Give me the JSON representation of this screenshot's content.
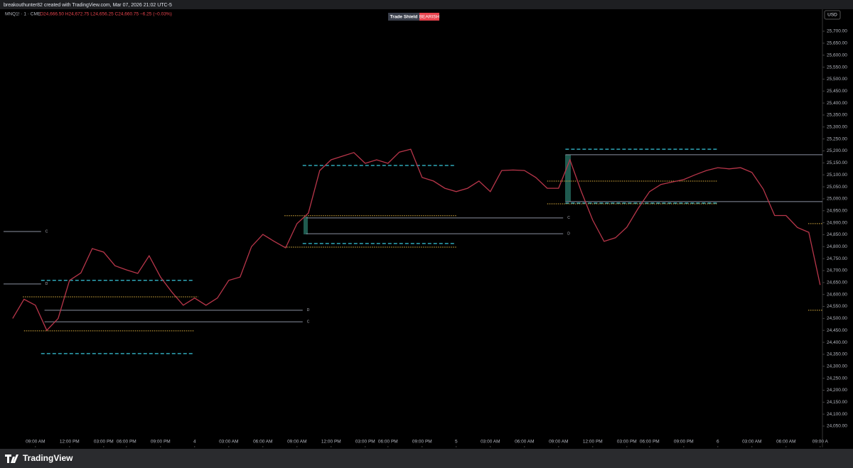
{
  "header": {
    "credit": "breakouthunter82 created with TradingView.com, Mar 07, 2026 21:02 UTC-5",
    "symbol": "MNQ1! · 1 · CME",
    "ohlc": "O24,666.50 H24,672.75 L24,656.25 C24,660.75 −6.25 (−0.03%)",
    "badge_name": "Trade Shield",
    "badge_state": "BEARISH"
  },
  "footer": {
    "brand": "TradingView"
  },
  "chart_data": {
    "type": "line",
    "currency": "USD",
    "grid": false,
    "x": [
      -2,
      -1,
      0,
      1,
      2,
      3,
      4,
      5,
      6,
      7,
      8,
      9,
      10,
      11,
      12,
      13,
      14,
      15,
      16,
      17,
      18,
      19,
      20,
      21,
      22,
      23,
      24,
      25,
      26,
      27,
      28,
      29,
      30,
      31,
      32,
      33,
      34,
      35,
      36,
      37,
      38,
      39,
      40,
      41,
      42,
      43,
      44,
      45,
      46,
      47,
      48,
      49,
      50,
      51,
      52,
      53,
      54,
      55,
      56,
      57,
      58,
      59,
      60,
      61,
      62,
      63,
      64,
      65,
      66,
      67,
      68,
      69
    ],
    "series": [
      {
        "color": "#b8364a",
        "values": [
          24500,
          24580,
          24555,
          24450,
          24500,
          24659,
          24690,
          24792,
          24777,
          24720,
          24703,
          24688,
          24762,
          24673,
          24610,
          24555,
          24585,
          24555,
          24585,
          24659,
          24673,
          24800,
          24851,
          24822,
          24795,
          24896,
          24940,
          25118,
          25163,
          25178,
          25193,
          25148,
          25163,
          25148,
          25195,
          25207,
          25089,
          25074,
          25044,
          25030,
          25044,
          25074,
          25030,
          25118,
          25120,
          25118,
          25089,
          25044,
          25044,
          25163,
          25030,
          24911,
          24822,
          24837,
          24881,
          24960,
          25030,
          25060,
          25070,
          25080,
          25100,
          25118,
          25130,
          25125,
          25130,
          25110,
          25040,
          24930,
          24930,
          24880,
          24860,
          24640
        ]
      }
    ],
    "xlim": [
      -2.8,
      69.2
    ],
    "xticks": [
      {
        "value": 0,
        "label": "09:00 AM"
      },
      {
        "value": 3,
        "label": "12:00 PM"
      },
      {
        "value": 6,
        "label": "03:00 PM"
      },
      {
        "value": 8,
        "label": "06:00 PM"
      },
      {
        "value": 11,
        "label": "09:00 PM"
      },
      {
        "value": 14,
        "label": "4"
      },
      {
        "value": 17,
        "label": "03:00 AM"
      },
      {
        "value": 20,
        "label": "06:00 AM"
      },
      {
        "value": 23,
        "label": "09:00 AM"
      },
      {
        "value": 26,
        "label": "12:00 PM"
      },
      {
        "value": 29,
        "label": "03:00 PM"
      },
      {
        "value": 31,
        "label": "06:00 PM"
      },
      {
        "value": 34,
        "label": "09:00 PM"
      },
      {
        "value": 37,
        "label": "5"
      },
      {
        "value": 40,
        "label": "03:00 AM"
      },
      {
        "value": 43,
        "label": "06:00 AM"
      },
      {
        "value": 46,
        "label": "09:00 AM"
      },
      {
        "value": 49,
        "label": "12:00 PM"
      },
      {
        "value": 52,
        "label": "03:00 PM"
      },
      {
        "value": 54,
        "label": "06:00 PM"
      },
      {
        "value": 57,
        "label": "09:00 PM"
      },
      {
        "value": 60,
        "label": "6"
      },
      {
        "value": 63,
        "label": "03:00 AM"
      },
      {
        "value": 66,
        "label": "06:00 AM"
      },
      {
        "value": 69,
        "label": "09:00 A"
      }
    ],
    "ylim": [
      23961,
      25792
    ],
    "yticks": [
      {
        "value": 25700,
        "label": "25,700.00"
      },
      {
        "value": 25650,
        "label": "25,650.00"
      },
      {
        "value": 25600,
        "label": "25,600.00"
      },
      {
        "value": 25550,
        "label": "25,550.00"
      },
      {
        "value": 25500,
        "label": "25,500.00"
      },
      {
        "value": 25450,
        "label": "25,450.00"
      },
      {
        "value": 25400,
        "label": "25,400.00"
      },
      {
        "value": 25350,
        "label": "25,350.00"
      },
      {
        "value": 25300,
        "label": "25,300.00"
      },
      {
        "value": 25250,
        "label": "25,250.00"
      },
      {
        "value": 25200,
        "label": "25,200.00"
      },
      {
        "value": 25150,
        "label": "25,150.00"
      },
      {
        "value": 25100,
        "label": "25,100.00"
      },
      {
        "value": 25050,
        "label": "25,050.00"
      },
      {
        "value": 25000,
        "label": "25,000.00"
      },
      {
        "value": 24950,
        "label": "24,950.00"
      },
      {
        "value": 24900,
        "label": "24,900.00"
      },
      {
        "value": 24850,
        "label": "24,850.00"
      },
      {
        "value": 24800,
        "label": "24,800.00"
      },
      {
        "value": 24750,
        "label": "24,750.00"
      },
      {
        "value": 24700,
        "label": "24,700.00"
      },
      {
        "value": 24650,
        "label": "24,650.00"
      },
      {
        "value": 24600,
        "label": "24,600.00"
      },
      {
        "value": 24550,
        "label": "24,550.00"
      },
      {
        "value": 24500,
        "label": "24,500.00"
      },
      {
        "value": 24450,
        "label": "24,450.00"
      },
      {
        "value": 24400,
        "label": "24,400.00"
      },
      {
        "value": 24350,
        "label": "24,350.00"
      },
      {
        "value": 24300,
        "label": "24,300.00"
      },
      {
        "value": 24250,
        "label": "24,250.00"
      },
      {
        "value": 24200,
        "label": "24,200.00"
      },
      {
        "value": 24150,
        "label": "24,150.00"
      },
      {
        "value": 24100,
        "label": "24,100.00"
      },
      {
        "value": 24050,
        "label": "24,050.00"
      }
    ],
    "levels": [
      {
        "price": 24659,
        "from": 0.5,
        "to": 14,
        "style": "dashed",
        "color": "#2fa7b8"
      },
      {
        "price": 24353,
        "from": 0.5,
        "to": 14,
        "style": "dashed",
        "color": "#2fa7b8"
      },
      {
        "price": 24590,
        "from": -1.1,
        "to": 14.3,
        "style": "dotted",
        "color": "#e0b341"
      },
      {
        "price": 24448,
        "from": -1,
        "to": 14,
        "style": "dotted",
        "color": "#e0b341"
      },
      {
        "price": 24534,
        "from": 0.8,
        "to": 23.5,
        "style": "solid",
        "color": "#8a90a0",
        "label": "D"
      },
      {
        "price": 24486,
        "from": 0.8,
        "to": 23.5,
        "style": "solid",
        "color": "#8a90a0",
        "label": "C"
      },
      {
        "price": 24863,
        "from": -2.8,
        "to": 0.5,
        "style": "solid",
        "color": "#8a90a0",
        "label": "C"
      },
      {
        "price": 24644,
        "from": -2.8,
        "to": 0.5,
        "style": "solid",
        "color": "#8a90a0",
        "label": "D"
      },
      {
        "price": 25139,
        "from": 23.5,
        "to": 37,
        "style": "dashed",
        "color": "#2fa7b8"
      },
      {
        "price": 24813,
        "from": 23.5,
        "to": 37,
        "style": "dashed",
        "color": "#2fa7b8"
      },
      {
        "price": 24929,
        "from": 21.9,
        "to": 37,
        "style": "dotted",
        "color": "#e0b341"
      },
      {
        "price": 24798,
        "from": 21.9,
        "to": 37,
        "style": "dotted",
        "color": "#e0b341"
      },
      {
        "price": 24920,
        "from": 23.8,
        "to": 46.4,
        "style": "solid",
        "color": "#8a90a0",
        "label": "C"
      },
      {
        "price": 24854,
        "from": 23.8,
        "to": 46.4,
        "style": "solid",
        "color": "#8a90a0",
        "label": "D"
      },
      {
        "price": 25207,
        "from": 46.6,
        "to": 60,
        "style": "dashed",
        "color": "#2fa7b8"
      },
      {
        "price": 24982,
        "from": 46.6,
        "to": 60,
        "style": "dashed",
        "color": "#2fa7b8"
      },
      {
        "price": 25074,
        "from": 45,
        "to": 60,
        "style": "dotted",
        "color": "#e0b341"
      },
      {
        "price": 24979,
        "from": 45,
        "to": 60,
        "style": "dotted",
        "color": "#e0b341"
      },
      {
        "price": 25184,
        "from": 46.6,
        "to": 69.2,
        "style": "solid",
        "color": "#8a90a0"
      },
      {
        "price": 24988,
        "from": 46.6,
        "to": 69.2,
        "style": "solid",
        "color": "#8a90a0"
      },
      {
        "price": 24896,
        "from": 67.95,
        "to": 69.2,
        "style": "dotted",
        "color": "#e0b341"
      },
      {
        "price": 24534,
        "from": 67.95,
        "to": 69.2,
        "style": "dotted",
        "color": "#e0b341"
      }
    ]
  }
}
